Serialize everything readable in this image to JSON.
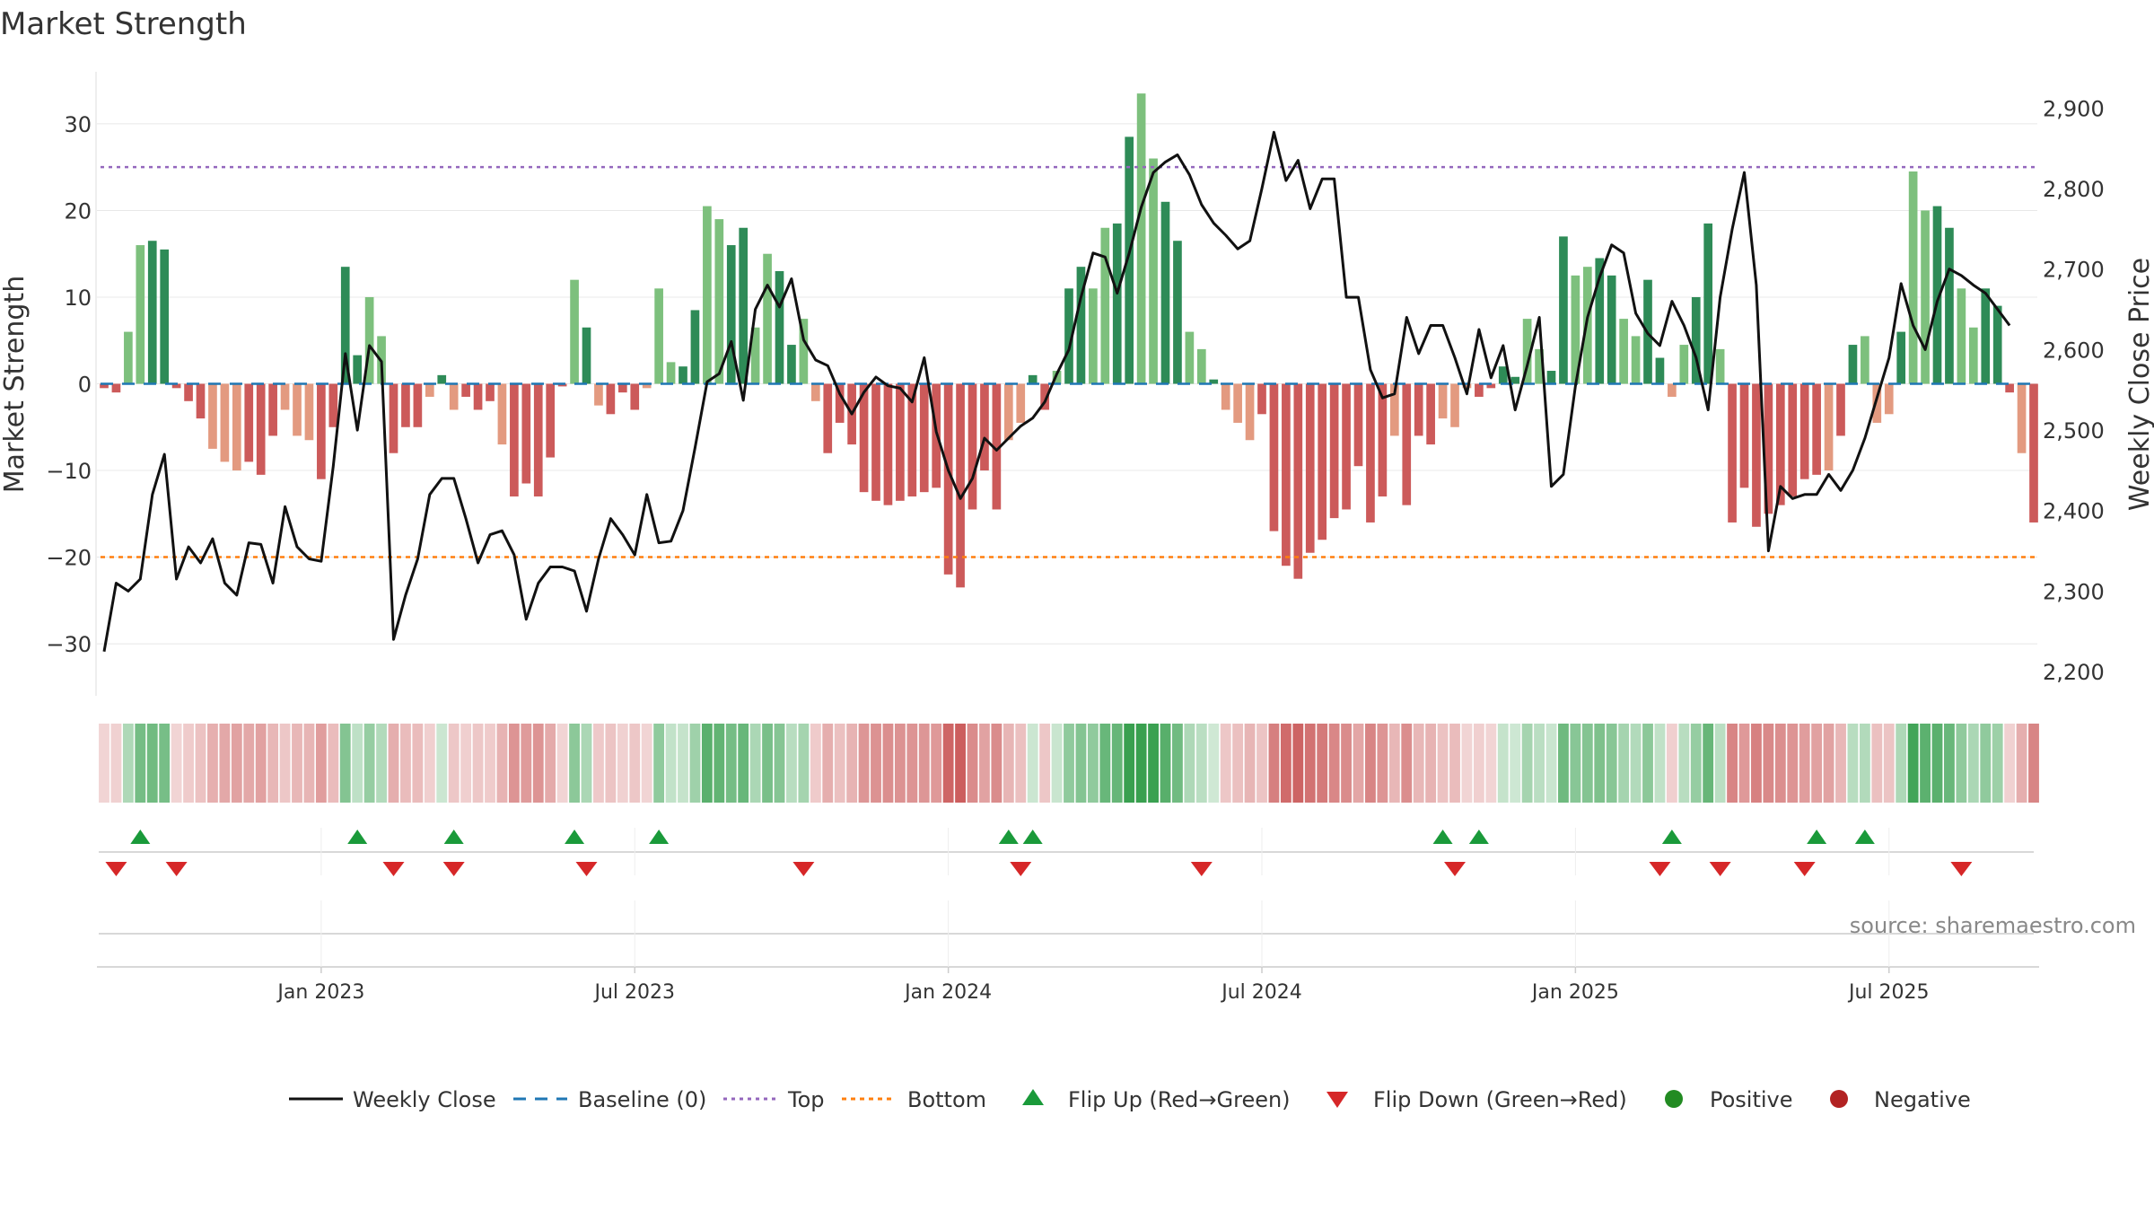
{
  "chart_data": {
    "type": "bar",
    "title": "Market Strength",
    "ylabel": "Market Strength",
    "y2label": "Weekly Close Price",
    "source": "source: sharemaestro.com",
    "ylim": [
      -36,
      36
    ],
    "y2lim": [
      2170,
      2945
    ],
    "yticks": [
      30,
      20,
      10,
      0,
      -10,
      -20,
      -30
    ],
    "yticklabels": [
      "30",
      "20",
      "10",
      "0",
      "−10",
      "−20",
      "−30"
    ],
    "y2ticks": [
      2900,
      2800,
      2700,
      2600,
      2500,
      2400,
      2300,
      2200
    ],
    "y2ticklabels": [
      "2,900",
      "2,800",
      "2,700",
      "2,600",
      "2,500",
      "2,400",
      "2,300",
      "2,200"
    ],
    "xticks": [
      {
        "index": 18,
        "label": "Jan 2023"
      },
      {
        "index": 44,
        "label": "Jul 2023"
      },
      {
        "index": 70,
        "label": "Jan 2024"
      },
      {
        "index": 96,
        "label": "Jul 2024"
      },
      {
        "index": 122,
        "label": "Jan 2025"
      },
      {
        "index": 148,
        "label": "Jul 2025"
      }
    ],
    "top_line": 25,
    "bottom_line": -20,
    "strength": [
      -0.5,
      -1,
      6,
      16,
      16.5,
      15.5,
      -0.5,
      -2,
      -4,
      -7.5,
      -9,
      -10,
      -9,
      -10.5,
      -6,
      -3,
      -6,
      -6.5,
      -11,
      -5,
      13.5,
      3.3,
      10,
      5.5,
      -8,
      -5,
      -5,
      -1.5,
      1,
      -3,
      -1.5,
      -3,
      -2,
      -7,
      -13,
      -11.5,
      -13,
      -8.5,
      -0.3,
      12,
      6.5,
      -2.5,
      -3.5,
      -1,
      -3,
      -0.5,
      11,
      2.5,
      2,
      8.5,
      20.5,
      19,
      16,
      18,
      6.5,
      15,
      13,
      4.5,
      7.5,
      -2,
      -8,
      -4.5,
      -7,
      -12.5,
      -13.5,
      -14,
      -13.5,
      -13,
      -12.5,
      -12,
      -22,
      -23.5,
      -14.5,
      -10,
      -14.5,
      -6.5,
      -4.5,
      1,
      -3,
      1.5,
      11,
      13.5,
      11,
      18,
      18.5,
      28.5,
      33.5,
      26,
      21,
      16.5,
      6,
      4,
      0.5,
      -3,
      -4.5,
      -6.5,
      -3.5,
      -17,
      -21,
      -22.5,
      -19.5,
      -18,
      -15.5,
      -14.5,
      -9.5,
      -16,
      -13,
      -6,
      -14,
      -6,
      -7,
      -4,
      -5,
      -0.5,
      -1.5,
      -0.5,
      2,
      0.8,
      7.5,
      4,
      1.5,
      17,
      12.5,
      13.5,
      14.5,
      12.5,
      7.5,
      5.5,
      12,
      3,
      -1.5,
      4.5,
      10,
      18.5,
      4,
      -16,
      -12,
      -16.5,
      -15,
      -14,
      -13,
      -11,
      -10.5,
      -10,
      -6,
      4.5,
      5.5,
      -4.5,
      -3.5,
      6,
      24.5,
      20,
      20.5,
      18,
      11,
      6.5,
      11,
      9,
      -1,
      -8,
      -16
    ],
    "weekly_close": [
      2225,
      2310,
      2300,
      2315,
      2420,
      2470,
      2315,
      2355,
      2335,
      2365,
      2310,
      2295,
      2360,
      2358,
      2310,
      2405,
      2355,
      2340,
      2337,
      2455,
      2595,
      2500,
      2605,
      2585,
      2240,
      2295,
      2340,
      2420,
      2440,
      2440,
      2390,
      2335,
      2370,
      2375,
      2345,
      2265,
      2310,
      2330,
      2330,
      2325,
      2275,
      2340,
      2390,
      2370,
      2345,
      2420,
      2360,
      2362,
      2400,
      2478,
      2560,
      2570,
      2610,
      2537,
      2650,
      2680,
      2653,
      2688,
      2612,
      2587,
      2580,
      2545,
      2520,
      2547,
      2566,
      2555,
      2552,
      2535,
      2590,
      2498,
      2450,
      2415,
      2440,
      2490,
      2475,
      2490,
      2505,
      2515,
      2535,
      2570,
      2600,
      2665,
      2720,
      2715,
      2670,
      2720,
      2777,
      2820,
      2833,
      2842,
      2817,
      2780,
      2757,
      2742,
      2725,
      2735,
      2800,
      2870,
      2810,
      2835,
      2775,
      2812,
      2812,
      2665,
      2665,
      2575,
      2540,
      2545,
      2640,
      2595,
      2630,
      2630,
      2590,
      2545,
      2625,
      2565,
      2605,
      2525,
      2580,
      2640,
      2430,
      2445,
      2555,
      2640,
      2690,
      2730,
      2720,
      2645,
      2620,
      2605,
      2660,
      2630,
      2590,
      2525,
      2665,
      2750,
      2820,
      2680,
      2350,
      2430,
      2415,
      2420,
      2420,
      2445,
      2425,
      2450,
      2490,
      2540,
      2590,
      2682,
      2630,
      2600,
      2660,
      2700,
      2692,
      2680,
      2670,
      2650,
      2630
    ],
    "flip_up": [
      3,
      21,
      29,
      39,
      46,
      75,
      77,
      111,
      114,
      130,
      142,
      146
    ],
    "flip_down": [
      1,
      6,
      24,
      29,
      40,
      58,
      76,
      91,
      112,
      129,
      134,
      141,
      154
    ],
    "legend": [
      "Weekly Close",
      "Baseline (0)",
      "Top",
      "Bottom",
      "Flip Up (Red→Green)",
      "Flip Down (Green→Red)",
      "Positive",
      "Negative"
    ],
    "colors": {
      "green_dark": "#2e8b57",
      "green_light": "#7dc07d",
      "red_dark": "#cc5a5a",
      "red_light": "#e39a80",
      "line": "#111111",
      "baseline": "#1f77b4",
      "top": "#9467bd",
      "bottom": "#ff7f0e",
      "flip_up": "#1a9a3a",
      "flip_down": "#d62728",
      "positive": "#228b22",
      "negative": "#b22222"
    }
  }
}
